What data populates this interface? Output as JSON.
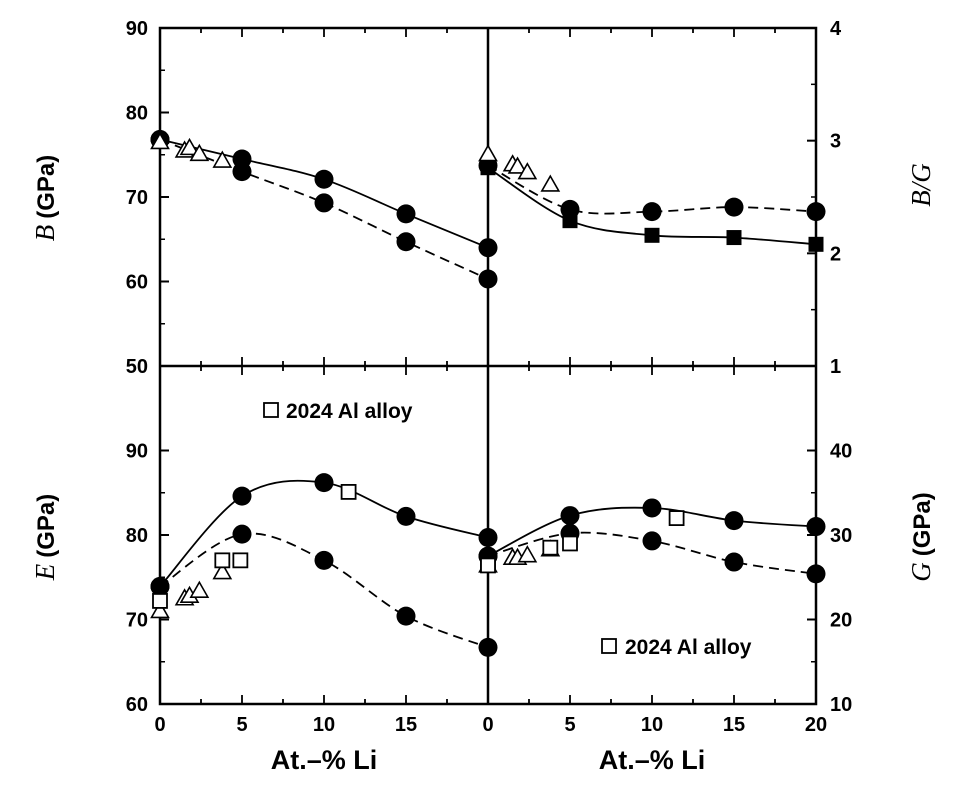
{
  "chart_data": [
    {
      "type": "scatter",
      "panel": "top-left",
      "y_symbol": "B",
      "y_unit": "(GPa)",
      "ylim": [
        50,
        90
      ],
      "yticks": [
        "50",
        "60",
        "70",
        "80",
        "90"
      ],
      "xlim": [
        0,
        20
      ],
      "series": [
        {
          "marker": "filled-circle",
          "line": "solid",
          "x": [
            0,
            5,
            10,
            15,
            20
          ],
          "y": [
            76.8,
            74.5,
            72.1,
            68.0,
            64.0
          ]
        },
        {
          "marker": "filled-circle",
          "line": "dashed",
          "x": [
            0,
            5,
            10,
            15,
            20
          ],
          "y": [
            76.8,
            73.0,
            69.3,
            64.7,
            60.3
          ]
        },
        {
          "marker": "open-triangle",
          "line": "none",
          "x": [
            0,
            1.5,
            1.8,
            2.4,
            3.8
          ],
          "y": [
            76.5,
            75.5,
            75.8,
            75.1,
            74.3
          ]
        }
      ]
    },
    {
      "type": "scatter",
      "panel": "top-right",
      "y_symbol": "B/G",
      "ylim": [
        1,
        4
      ],
      "yticks": [
        "1",
        "2",
        "3",
        "4"
      ],
      "xlim": [
        0,
        20
      ],
      "series": [
        {
          "marker": "filled-square",
          "line": "solid",
          "x": [
            0,
            5,
            10,
            15,
            20
          ],
          "y": [
            2.76,
            2.29,
            2.16,
            2.14,
            2.08
          ]
        },
        {
          "marker": "filled-circle",
          "line": "dashed",
          "x": [
            0,
            5,
            10,
            15,
            20
          ],
          "y": [
            2.78,
            2.39,
            2.37,
            2.41,
            2.37
          ]
        },
        {
          "marker": "open-triangle",
          "line": "none",
          "x": [
            0,
            1.5,
            1.8,
            2.4,
            3.8
          ],
          "y": [
            2.88,
            2.79,
            2.77,
            2.72,
            2.61
          ]
        }
      ]
    },
    {
      "type": "scatter",
      "panel": "bottom-left",
      "y_symbol": "E",
      "y_unit": "(GPa)",
      "ylim": [
        60,
        100
      ],
      "yticks": [
        "60",
        "70",
        "80",
        "90"
      ],
      "xlim": [
        0,
        20
      ],
      "xticks": [
        "0",
        "5",
        "10",
        "15"
      ],
      "xlabel": "At.–% Li",
      "legend": "2024 Al alloy",
      "series": [
        {
          "marker": "filled-circle",
          "line": "solid",
          "x": [
            0,
            5,
            10,
            15,
            20
          ],
          "y": [
            73.9,
            84.6,
            86.2,
            82.2,
            79.7
          ]
        },
        {
          "marker": "filled-circle",
          "line": "dashed",
          "x": [
            0,
            5,
            10,
            15,
            20
          ],
          "y": [
            73.9,
            80.1,
            77.0,
            70.4,
            66.7
          ]
        },
        {
          "marker": "open-triangle",
          "line": "none",
          "x": [
            0,
            1.5,
            1.8,
            2.4,
            3.8
          ],
          "y": [
            71.0,
            72.5,
            72.8,
            73.4,
            75.6
          ]
        },
        {
          "marker": "open-square",
          "line": "none",
          "name": "2024 Al alloy",
          "x": [
            0,
            3.8,
            4.9,
            11.5,
            20
          ],
          "y": [
            72.2,
            77.0,
            77.0,
            85.1,
            76.7
          ]
        }
      ]
    },
    {
      "type": "scatter",
      "panel": "bottom-right",
      "y_symbol": "G",
      "y_unit": "(GPa)",
      "ylim": [
        10,
        50
      ],
      "yticks": [
        "10",
        "20",
        "30",
        "40"
      ],
      "xlim": [
        0,
        20
      ],
      "xticks": [
        "0",
        "5",
        "10",
        "15",
        "20"
      ],
      "xlabel": "At.–% Li",
      "legend": "2024 Al alloy",
      "series": [
        {
          "marker": "filled-circle",
          "line": "solid",
          "x": [
            0,
            5,
            10,
            15,
            20
          ],
          "y": [
            27.5,
            32.3,
            33.2,
            31.7,
            31.0
          ]
        },
        {
          "marker": "filled-circle",
          "line": "dashed",
          "x": [
            0,
            5,
            10,
            15,
            20
          ],
          "y": [
            27.5,
            30.2,
            29.3,
            26.8,
            25.4
          ]
        },
        {
          "marker": "open-triangle",
          "line": "none",
          "x": [
            0,
            1.5,
            1.8,
            2.4,
            3.8
          ],
          "y": [
            26.4,
            27.3,
            27.3,
            27.6,
            28.3
          ]
        },
        {
          "marker": "open-square",
          "line": "none",
          "name": "2024 Al alloy",
          "x": [
            0,
            3.8,
            5,
            11.5
          ],
          "y": [
            26.4,
            28.5,
            29.0,
            32.0
          ]
        }
      ]
    }
  ]
}
